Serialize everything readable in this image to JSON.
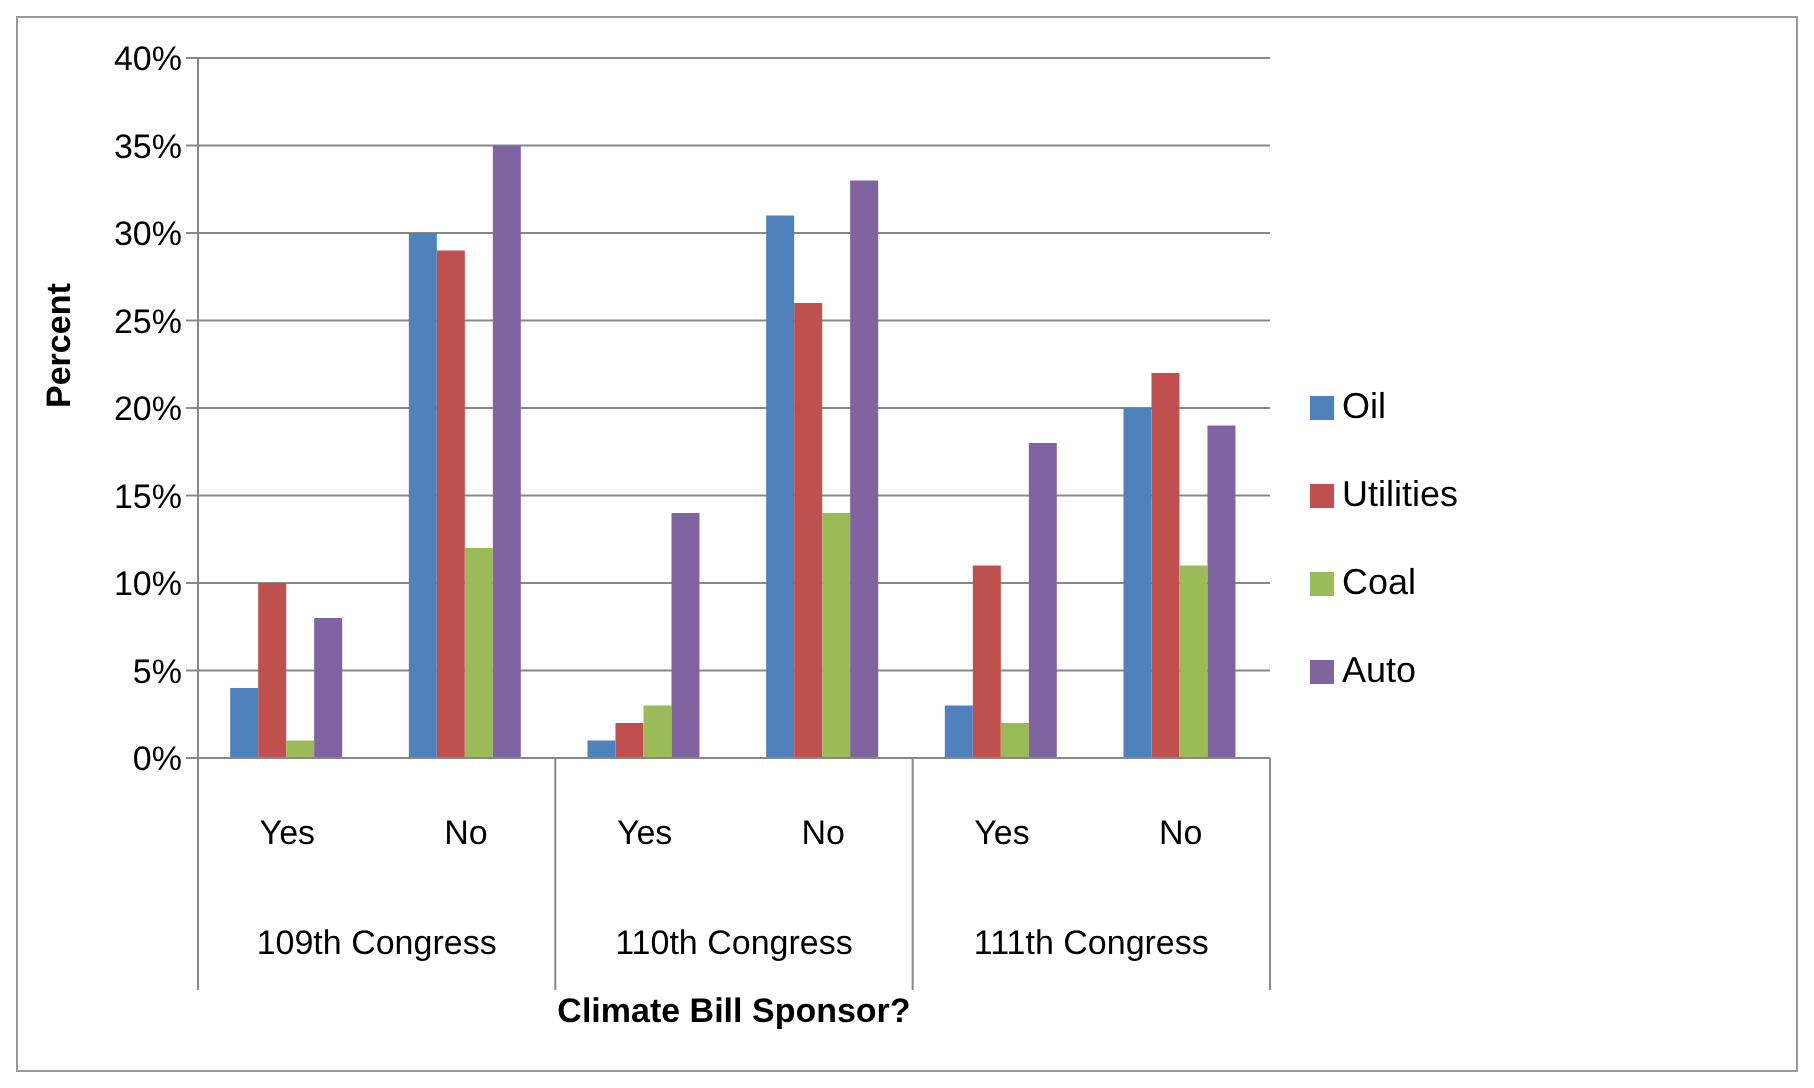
{
  "chart_data": {
    "type": "bar",
    "categories": [
      "Yes",
      "No",
      "Yes",
      "No",
      "Yes",
      "No"
    ],
    "annotations": [
      "109th Congress",
      "110th Congress",
      "111th Congress"
    ],
    "xlabel": "Climate Bill Sponsor?",
    "ylabel": "Percent",
    "series": [
      {
        "name": "Oil",
        "color": "#4f81bd",
        "values": [
          4,
          30,
          1,
          31,
          3,
          20
        ]
      },
      {
        "name": "Utilities",
        "color": "#c0504d",
        "values": [
          10,
          29,
          2,
          26,
          11,
          22
        ]
      },
      {
        "name": "Coal",
        "color": "#9bbb59",
        "values": [
          1,
          12,
          3,
          14,
          2,
          11
        ]
      },
      {
        "name": "Auto",
        "color": "#8064a2",
        "values": [
          8,
          35,
          14,
          33,
          18,
          19
        ]
      }
    ],
    "ylim": [
      0,
      40
    ],
    "yticks": [
      {
        "value": 0,
        "label": "0%"
      },
      {
        "value": 5,
        "label": "5%"
      },
      {
        "value": 10,
        "label": "10%"
      },
      {
        "value": 15,
        "label": "15%"
      },
      {
        "value": 20,
        "label": "20%"
      },
      {
        "value": 25,
        "label": "25%"
      },
      {
        "value": 30,
        "label": "30%"
      },
      {
        "value": 35,
        "label": "35%"
      },
      {
        "value": 40,
        "label": "40%"
      }
    ],
    "grid": "y",
    "legend": "right"
  }
}
